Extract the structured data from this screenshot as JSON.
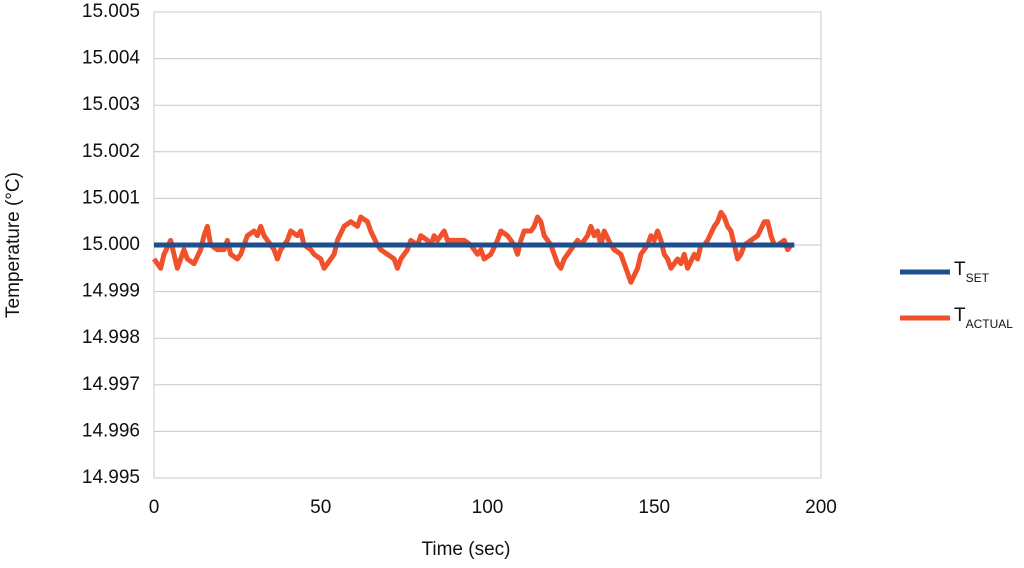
{
  "chart_data": {
    "type": "line",
    "xlabel": "Time (sec)",
    "ylabel": "Temperature (°C)",
    "xlim": [
      0,
      200
    ],
    "xticks": [
      0,
      50,
      100,
      150,
      200
    ],
    "ylim": [
      14.995,
      15.005
    ],
    "yticks": [
      14.995,
      14.996,
      14.997,
      14.998,
      14.999,
      {
        "value": 15.0,
        "label": "15.000"
      },
      15.001,
      15.002,
      15.003,
      15.004,
      15.005
    ],
    "grid": true,
    "legend": "right",
    "series": [
      {
        "name": "T",
        "subscript": "SET",
        "color": "#1f4e8c",
        "x": [
          0,
          192
        ],
        "values": [
          15.0,
          15.0
        ]
      },
      {
        "name": "T",
        "subscript": "ACTUAL",
        "color": "#f0502a",
        "x": [
          0,
          2,
          3,
          5,
          6,
          7,
          9,
          10,
          12,
          14,
          15,
          16,
          17,
          19,
          21,
          22,
          23,
          25,
          26,
          27,
          28,
          30,
          31,
          32,
          33,
          35,
          36,
          37,
          38,
          40,
          41,
          43,
          44,
          45,
          47,
          48,
          50,
          51,
          52,
          54,
          55,
          57,
          59,
          61,
          62,
          64,
          65,
          67,
          68,
          70,
          72,
          73,
          74,
          76,
          77,
          79,
          80,
          82,
          83,
          84,
          85,
          87,
          88,
          90,
          93,
          95,
          96,
          97,
          98,
          99,
          101,
          103,
          104,
          106,
          108,
          109,
          110,
          111,
          113,
          114,
          115,
          116,
          117,
          118,
          119,
          120,
          121,
          122,
          123,
          124,
          126,
          127,
          128,
          130,
          131,
          132,
          133,
          134,
          135,
          137,
          138,
          140,
          141,
          142,
          143,
          145,
          146,
          148,
          149,
          150,
          151,
          152,
          153,
          154,
          155,
          156,
          157,
          158,
          159,
          160,
          162,
          163,
          164,
          165,
          166,
          168,
          169,
          170,
          171,
          172,
          173,
          174,
          175,
          176,
          177,
          179,
          181,
          183,
          184,
          185,
          186,
          187,
          189,
          190,
          191
        ],
        "values": [
          14.9997,
          14.9995,
          14.9998,
          15.0001,
          14.9998,
          14.9995,
          14.9999,
          14.9997,
          14.9996,
          14.9999,
          15.0002,
          15.0004,
          15.0,
          14.9999,
          14.9999,
          15.0001,
          14.9998,
          14.9997,
          14.9998,
          15.0,
          15.0002,
          15.0003,
          15.0002,
          15.0004,
          15.0002,
          15.0,
          14.9999,
          14.9997,
          14.9999,
          15.0001,
          15.0003,
          15.0002,
          15.0003,
          15.0,
          14.9999,
          14.9998,
          14.9997,
          14.9995,
          14.9996,
          14.9998,
          15.0001,
          15.0004,
          15.0005,
          15.0004,
          15.0006,
          15.0005,
          15.0003,
          15.0,
          14.9999,
          14.9998,
          14.9997,
          14.9995,
          14.9997,
          14.9999,
          15.0001,
          15.0,
          15.0002,
          15.0001,
          15.0,
          15.0002,
          15.0001,
          15.0003,
          15.0001,
          15.0001,
          15.0001,
          15.0,
          14.9999,
          14.9998,
          14.9999,
          14.9997,
          14.9998,
          15.0001,
          15.0003,
          15.0002,
          15.0,
          14.9998,
          15.0001,
          15.0003,
          15.0003,
          15.0004,
          15.0006,
          15.0005,
          15.0002,
          15.0001,
          15.0,
          14.9998,
          14.9996,
          14.9995,
          14.9997,
          14.9998,
          15.0,
          15.0001,
          15.0,
          15.0002,
          15.0004,
          15.0002,
          15.0003,
          15.0,
          15.0003,
          15.0,
          14.9999,
          14.9998,
          14.9996,
          14.9994,
          14.9992,
          14.9995,
          14.9998,
          15.0,
          15.0002,
          15.0001,
          15.0003,
          15.0001,
          14.9998,
          14.9997,
          14.9995,
          14.9996,
          14.9997,
          14.9996,
          14.9998,
          14.9995,
          14.9998,
          14.9997,
          15.0,
          15.0,
          15.0001,
          15.0004,
          15.0005,
          15.0007,
          15.0006,
          15.0004,
          15.0003,
          15.0,
          14.9997,
          14.9998,
          15.0,
          15.0001,
          15.0002,
          15.0005,
          15.0005,
          15.0002,
          15.0,
          15.0,
          15.0001,
          14.9999,
          15.0
        ]
      }
    ]
  }
}
